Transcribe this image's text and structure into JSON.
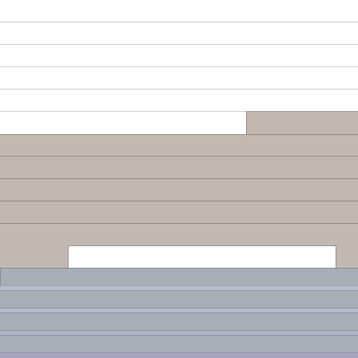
{
  "colors": {
    "background": "#ffffff",
    "grid_line": "#c9c9c9",
    "tan_fill": "#c1b8b1",
    "tan_edge": "#8f8781",
    "steel_fill": "#a8aeb6",
    "steel_highlight": "#b8bdcc",
    "steel_edge": "#7f8691",
    "lavender_band": "#a7a4bf"
  },
  "surface": {
    "empty_row_count": 5,
    "tan_row_count": 6,
    "steel_row_count": 4
  }
}
